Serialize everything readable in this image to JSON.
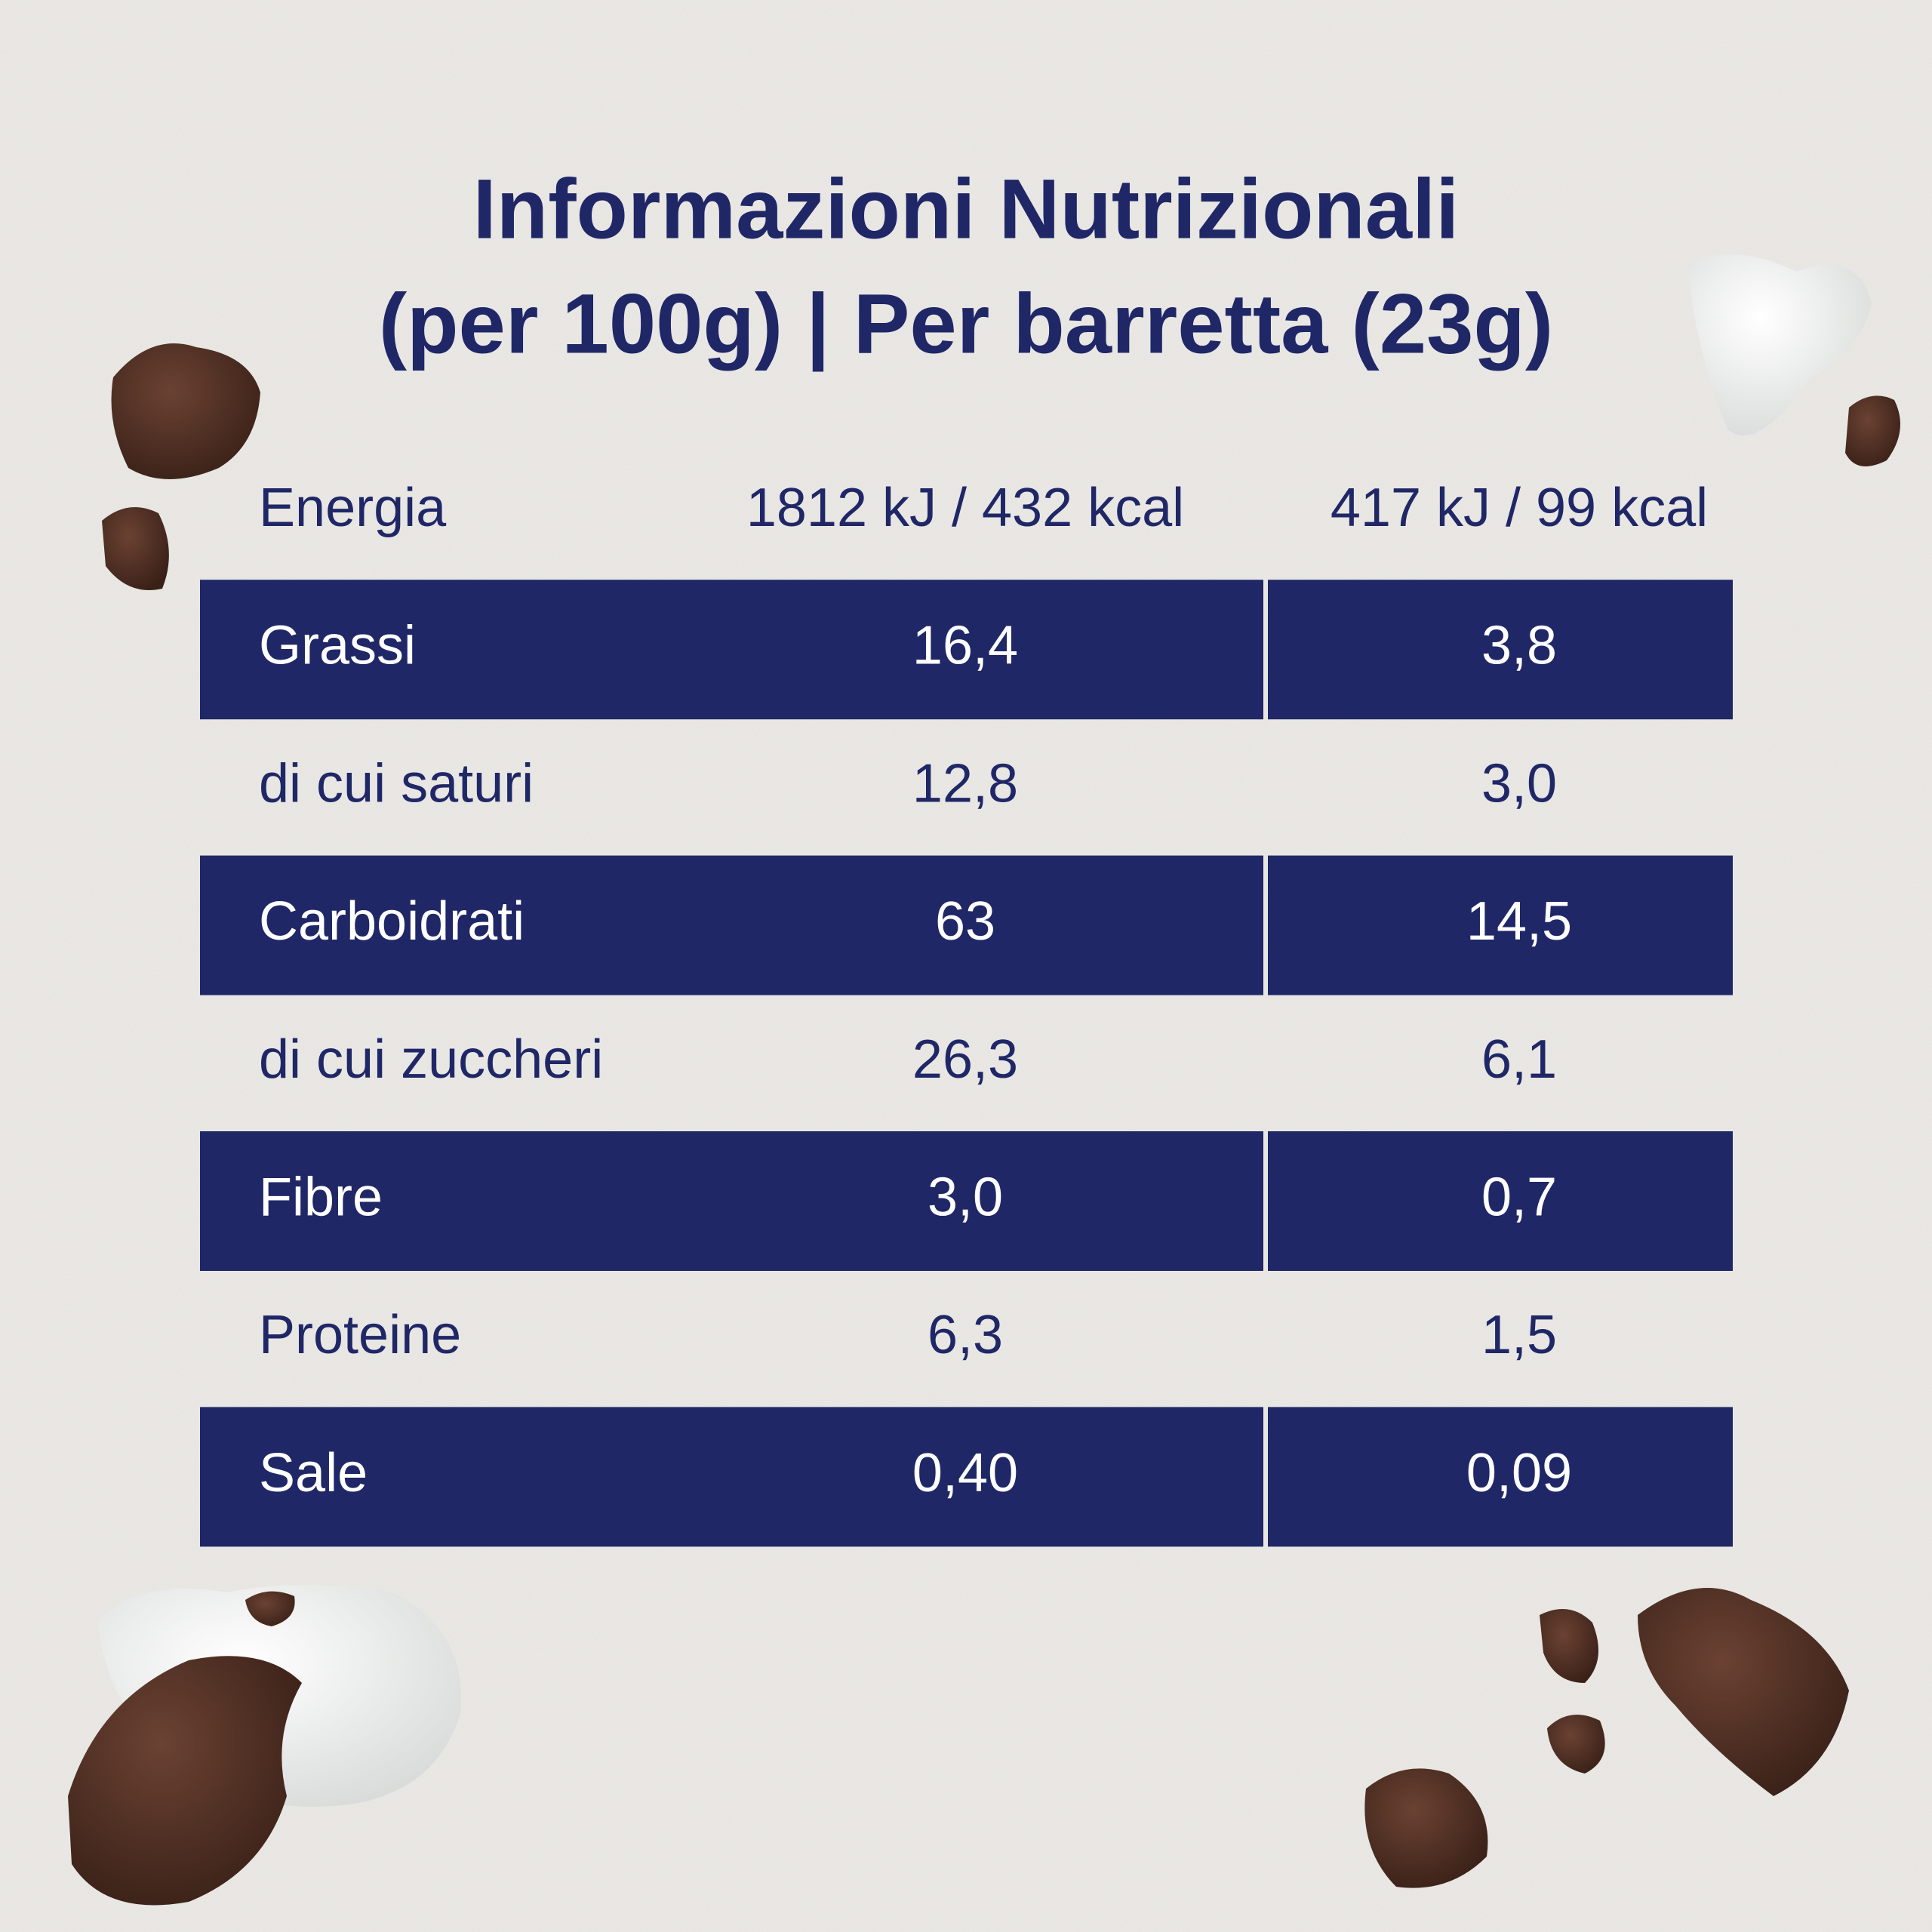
{
  "title": [
    "Informazioni Nutrizionali",
    "(per 100g) | Per barretta (23g)"
  ],
  "table": {
    "rows": [
      [
        "Energia",
        "1812 kJ / 432 kcal",
        "417 kJ / 99 kcal"
      ],
      [
        "Grassi",
        "16,4",
        "3,8"
      ],
      [
        "di cui saturi",
        "12,8",
        "3,0"
      ],
      [
        "Carboidrati",
        "63",
        "14,5"
      ],
      [
        "di cui zuccheri",
        "26,3",
        "6,1"
      ],
      [
        "Fibre",
        "3,0",
        "0,7"
      ],
      [
        "Proteine",
        "6,3",
        "1,5"
      ],
      [
        "Sale",
        "0,40",
        "0,09"
      ]
    ]
  }
}
